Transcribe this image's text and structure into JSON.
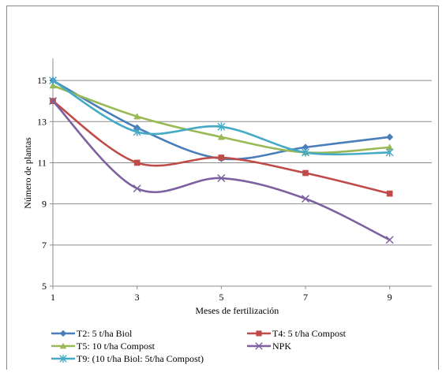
{
  "chart_data": {
    "type": "line",
    "title": "",
    "xlabel": "Meses de fertilización",
    "ylabel": "Número de plantas",
    "x": [
      1,
      3,
      5,
      7,
      9
    ],
    "x_ticks": [
      "1",
      "3",
      "5",
      "7",
      "9"
    ],
    "y_ticks": [
      "5",
      "7",
      "9",
      "11",
      "13",
      "15"
    ],
    "xlim": [
      1,
      10
    ],
    "ylim": [
      5,
      16
    ],
    "grid": "horizontal",
    "legend_position": "bottom",
    "smooth": true,
    "series": [
      {
        "name": "T2: 5 t/ha Biol",
        "values": [
          15.0,
          12.7,
          11.2,
          11.75,
          12.25
        ],
        "color": "#4a7ebb",
        "marker": "diamond"
      },
      {
        "name": "T4: 5 t/ha Compost",
        "values": [
          14.0,
          11.0,
          11.25,
          10.5,
          9.5
        ],
        "color": "#be4b48",
        "marker": "square"
      },
      {
        "name": "T5: 10 t/ha Compost",
        "values": [
          14.75,
          13.25,
          12.25,
          11.5,
          11.75
        ],
        "color": "#98b954",
        "marker": "triangle"
      },
      {
        "name": "NPK",
        "values": [
          14.0,
          9.75,
          10.25,
          9.25,
          7.25
        ],
        "color": "#7d60a0",
        "marker": "x"
      },
      {
        "name": "T9: (10 t/ha Biol: 5t/ha Compost)",
        "values": [
          15.0,
          12.5,
          12.75,
          11.5,
          11.5
        ],
        "color": "#46aac5",
        "marker": "asterisk"
      }
    ]
  }
}
